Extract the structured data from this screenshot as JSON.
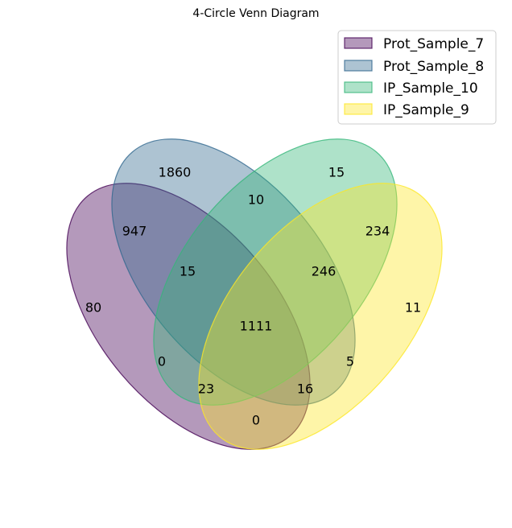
{
  "title": "4-Circle Venn Diagram",
  "sets": [
    {
      "name": "Prot_Sample_7",
      "color": "#440154"
    },
    {
      "name": "Prot_Sample_8",
      "color": "#31688e"
    },
    {
      "name": "IP_Sample_10",
      "color": "#35b779"
    },
    {
      "name": "IP_Sample_9",
      "color": "#fde725"
    }
  ],
  "legend_placement": "top-right",
  "regions": [
    {
      "sets": [
        "Prot_Sample_8"
      ],
      "value": "1860"
    },
    {
      "sets": [
        "IP_Sample_10"
      ],
      "value": "15"
    },
    {
      "sets": [
        "Prot_Sample_8",
        "IP_Sample_10"
      ],
      "value": "10"
    },
    {
      "sets": [
        "Prot_Sample_7",
        "Prot_Sample_8"
      ],
      "value": "947"
    },
    {
      "sets": [
        "IP_Sample_10",
        "IP_Sample_9"
      ],
      "value": "234"
    },
    {
      "sets": [
        "Prot_Sample_7",
        "Prot_Sample_8",
        "IP_Sample_10"
      ],
      "value": "15"
    },
    {
      "sets": [
        "Prot_Sample_8",
        "IP_Sample_10",
        "IP_Sample_9"
      ],
      "value": "246"
    },
    {
      "sets": [
        "Prot_Sample_7"
      ],
      "value": "80"
    },
    {
      "sets": [
        "IP_Sample_9"
      ],
      "value": "11"
    },
    {
      "sets": [
        "Prot_Sample_7",
        "Prot_Sample_8",
        "IP_Sample_10",
        "IP_Sample_9"
      ],
      "value": "1111"
    },
    {
      "sets": [
        "Prot_Sample_7",
        "IP_Sample_10"
      ],
      "value": "0"
    },
    {
      "sets": [
        "Prot_Sample_8",
        "IP_Sample_9"
      ],
      "value": "5"
    },
    {
      "sets": [
        "Prot_Sample_7",
        "IP_Sample_10",
        "IP_Sample_9"
      ],
      "value": "23"
    },
    {
      "sets": [
        "Prot_Sample_7",
        "Prot_Sample_8",
        "IP_Sample_9"
      ],
      "value": "16"
    },
    {
      "sets": [
        "Prot_Sample_7",
        "IP_Sample_9"
      ],
      "value": "0"
    }
  ]
}
